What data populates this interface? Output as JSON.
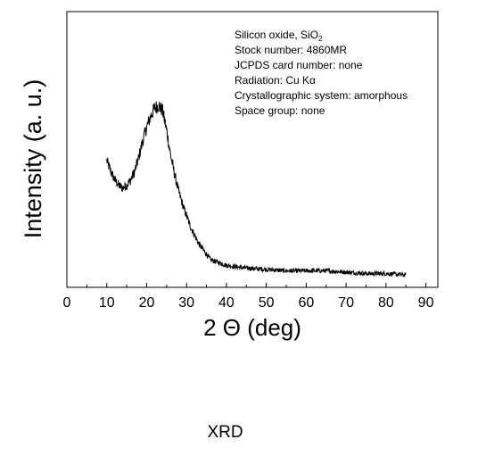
{
  "chart_data": {
    "type": "line",
    "xlabel": "2 Θ (deg)",
    "ylabel": "Intensity (a. u.)",
    "xlim": [
      0,
      93
    ],
    "ylim": [
      0,
      1
    ],
    "xticks": [
      "0",
      "10",
      "20",
      "30",
      "40",
      "50",
      "60",
      "70",
      "80",
      "90"
    ],
    "yticks": [],
    "grid": false,
    "annotation_lines": [
      "Silicon oxide, SiO",
      "Stock number: 4860MR",
      "JCPDS card number: none",
      "Radiation: Cu Kα",
      "Crystallographic system: amorphous",
      "Space group: none"
    ],
    "annotation_subscript": "2",
    "series": [
      {
        "x": [
          10,
          11,
          12,
          13,
          14,
          15,
          16,
          17,
          18,
          19,
          20,
          21,
          22,
          23,
          24,
          25,
          26,
          27,
          28,
          29,
          30,
          31,
          32,
          33,
          34,
          35,
          36,
          37,
          38,
          39,
          40,
          42,
          45,
          50,
          55,
          60,
          65,
          70,
          75,
          80,
          85
        ],
        "y": [
          0.46,
          0.42,
          0.39,
          0.37,
          0.36,
          0.37,
          0.39,
          0.42,
          0.47,
          0.53,
          0.58,
          0.62,
          0.65,
          0.66,
          0.64,
          0.57,
          0.48,
          0.41,
          0.35,
          0.3,
          0.26,
          0.22,
          0.19,
          0.16,
          0.14,
          0.12,
          0.1,
          0.095,
          0.09,
          0.085,
          0.08,
          0.075,
          0.07,
          0.065,
          0.06,
          0.06,
          0.06,
          0.055,
          0.05,
          0.05,
          0.045
        ]
      }
    ]
  },
  "caption": "XRD"
}
